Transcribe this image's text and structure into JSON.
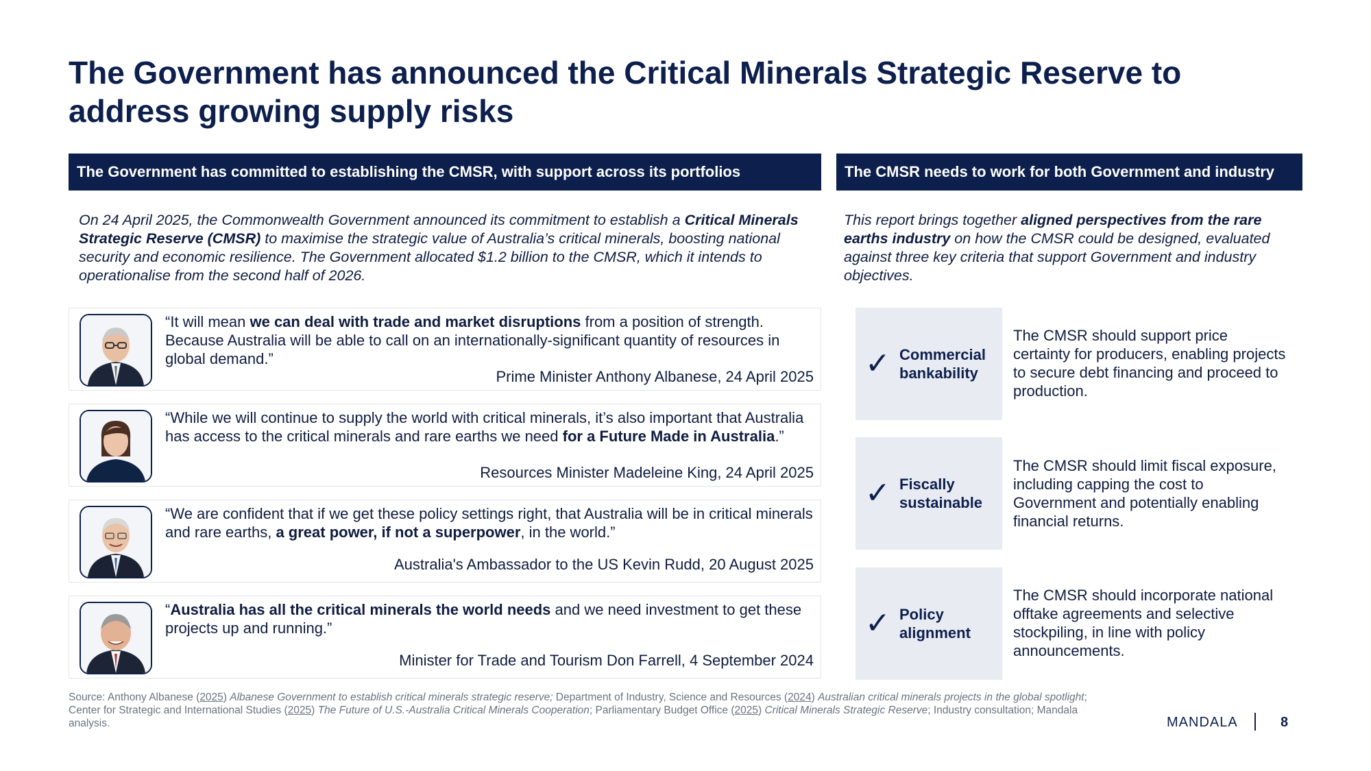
{
  "slide": {
    "title": "The Government has announced the Critical Minerals Strategic Reserve to address growing supply risks"
  },
  "left": {
    "header": "The Government has committed to establishing the CMSR, with support across its portfolios",
    "intro": {
      "p1": "On 24 April 2025, the Commonwealth Government announced its commitment to establish a ",
      "b1": "Critical Minerals Strategic Reserve (CMSR)",
      "p2": " to maximise the strategic value of Australia’s critical minerals, boosting national security and economic resilience. The Government allocated $1.2 billion to the CMSR, which it intends to operationalise from the second half of 2026."
    },
    "quotes": [
      {
        "pre": "“It will mean ",
        "bold": "we can deal with trade and market disruptions",
        "post": " from a position of strength. Because Australia will be able to call on an internationally-significant quantity of resources in global demand.”",
        "attribution": "Prime Minister Anthony Albanese, 24 April 2025"
      },
      {
        "pre": "“While we will continue to supply the world with critical minerals, it’s also important that Australia has access to the critical minerals and rare earths we need ",
        "bold": "for a Future Made in Australia",
        "post": ".”",
        "attribution": "Resources Minister Madeleine King, 24 April 2025"
      },
      {
        "pre": "“We are confident that if we get these policy settings right, that Australia will be in critical minerals and rare earths, ",
        "bold": "a great power, if not a superpower",
        "post": ", in the world.”",
        "attribution": "Australia's Ambassador to the US Kevin Rudd, 20 August 2025"
      },
      {
        "pre": "“",
        "bold": "Australia has all the critical minerals the world needs",
        "post": " and we need investment to get these projects up and running.”",
        "attribution": "Minister for Trade and Tourism Don Farrell, 4 September 2024"
      }
    ]
  },
  "right": {
    "header": "The CMSR needs to work for both Government and industry",
    "intro": {
      "p1": "This report brings together ",
      "b1": "aligned perspectives from the rare earths industry",
      "p2": " on how the CMSR could be designed, evaluated against three key criteria that support Government and industry objectives."
    },
    "criteria": [
      {
        "check": "✓",
        "label": "Commercial bankability",
        "description": "The CMSR should support price certainty for producers, enabling projects to secure debt financing and proceed to production."
      },
      {
        "check": "✓",
        "label": "Fiscally sustainable",
        "description": "The CMSR should limit fiscal exposure, including capping the cost to Government and potentially enabling financial returns."
      },
      {
        "check": "✓",
        "label": "Policy alignment",
        "description": "The CMSR should incorporate national offtake agreements and selective stockpiling, in line with policy announcements."
      }
    ]
  },
  "source": {
    "prefix": "Source: Anthony Albanese (",
    "y1": "2025",
    "t1": ") ",
    "i1": "Albanese Government to establish critical minerals strategic reserve;",
    "t2": " Department of Industry, Science and Resources (",
    "y2": "2024",
    "t3": ") ",
    "i2": "Australian critical minerals projects in the global spotlight",
    "t4": "; Center for Strategic and International Studies (",
    "y3": "2025",
    "t5": ") ",
    "i3": "The Future of U.S.-Australia Critical Minerals Cooperation",
    "t6": "; Parliamentary Budget Office (",
    "y4": "2025",
    "t7": ") ",
    "i4": "Critical Minerals Strategic Reserve",
    "t8": "; Industry consultation; Mandala analysis."
  },
  "footer": {
    "brand": "MANDALA",
    "page": "8"
  },
  "colors": {
    "navy": "#0c1f4d",
    "criteria_bg": "#e9ebf2",
    "card_border": "#e2e5ec",
    "source_grey": "#6b7280"
  },
  "icons": [
    "albanese-portrait",
    "king-portrait",
    "rudd-portrait",
    "farrell-portrait",
    "check-icon"
  ]
}
